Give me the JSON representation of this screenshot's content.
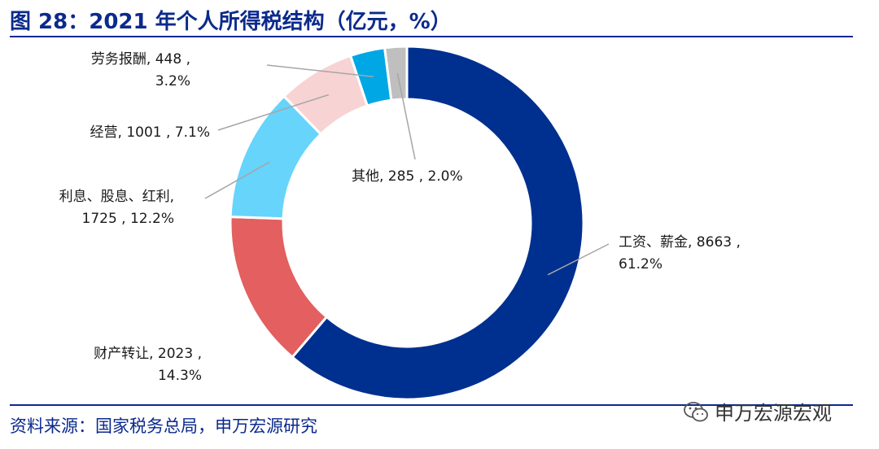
{
  "header": {
    "title": "图 28：2021 年个人所得税结构（亿元，%）"
  },
  "footer": {
    "source": "资料来源：国家税务总局，申万宏源研究",
    "watermark": "申万宏源宏观"
  },
  "chart_data": {
    "type": "pie",
    "title": "2021 年个人所得税结构（亿元，%）",
    "donut": true,
    "slices": [
      {
        "name": "工资、薪金",
        "value": 8663,
        "percent": "61.2%",
        "color": "#00308f",
        "label_lines": [
          "工资、薪金, 8663 ,",
          "61.2%"
        ]
      },
      {
        "name": "财产转让",
        "value": 2023,
        "percent": "14.3%",
        "color": "#e45f5f",
        "label_lines": [
          "财产转让, 2023 ,",
          "14.3%"
        ]
      },
      {
        "name": "利息、股息、红利",
        "value": 1725,
        "percent": "12.2%",
        "color": "#66d4fb",
        "label_lines": [
          "利息、股息、红利,",
          "1725 , 12.2%"
        ]
      },
      {
        "name": "经营",
        "value": 1001,
        "percent": "7.1%",
        "color": "#f8d3d3",
        "label_lines": [
          "经营, 1001 , 7.1%"
        ]
      },
      {
        "name": "劳务报酬",
        "value": 448,
        "percent": "3.2%",
        "color": "#00a7e5",
        "label_lines": [
          "劳务报酬, 448 ,",
          "3.2%"
        ]
      },
      {
        "name": "其他",
        "value": 285,
        "percent": "2.0%",
        "color": "#bfbfbf",
        "label_lines": [
          "其他, 285 , 2.0%"
        ]
      }
    ]
  }
}
